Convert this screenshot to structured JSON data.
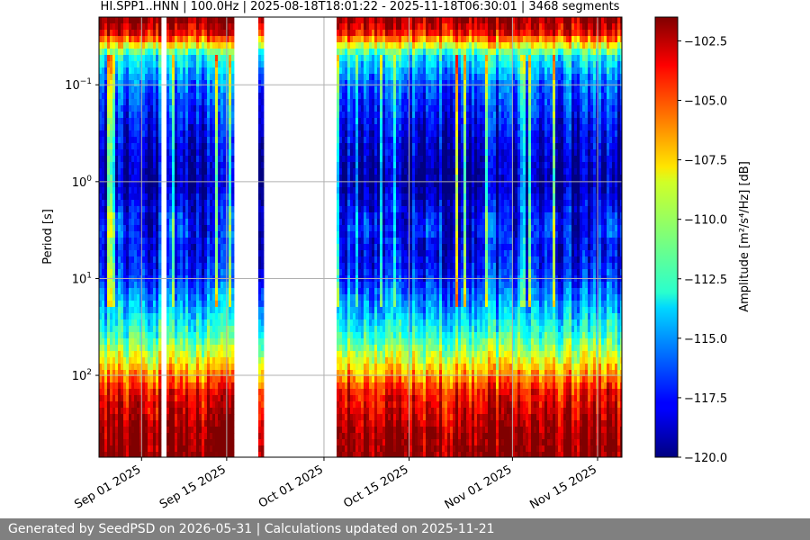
{
  "chart_data": {
    "type": "heatmap",
    "title": "HI.SPP1..HNN | 100.0Hz | 2025-08-18T18:01:22 - 2025-11-18T06:30:01 | 3468 segments",
    "ylabel": "Period [s]",
    "colorbar_label": "Amplitude [m²/s⁴/Hz] [dB]",
    "y_scale": "log",
    "y_inverted": true,
    "ylim": [
      0.02,
      700
    ],
    "xlim": [
      "2025-08-25",
      "2025-11-19"
    ],
    "grid": true,
    "y_ticks": [
      {
        "value": 0.1,
        "base": "10",
        "exp": "−1"
      },
      {
        "value": 1,
        "base": "10",
        "exp": "0"
      },
      {
        "value": 10,
        "base": "10",
        "exp": "1"
      },
      {
        "value": 100,
        "base": "10",
        "exp": "2"
      }
    ],
    "x_ticks": [
      {
        "date": "2025-09-01",
        "label": "Sep 01 2025"
      },
      {
        "date": "2025-09-15",
        "label": "Sep 15 2025"
      },
      {
        "date": "2025-10-01",
        "label": "Oct 01 2025"
      },
      {
        "date": "2025-10-15",
        "label": "Oct 15 2025"
      },
      {
        "date": "2025-11-01",
        "label": "Nov 01 2025"
      },
      {
        "date": "2025-11-15",
        "label": "Nov 15 2025"
      }
    ],
    "colorbar": {
      "range": [
        -120,
        -101.5
      ],
      "colormap": "jet",
      "ticks": [
        {
          "value": -102.5,
          "label": "−102.5"
        },
        {
          "value": -105.0,
          "label": "−105.0"
        },
        {
          "value": -107.5,
          "label": "−107.5"
        },
        {
          "value": -110.0,
          "label": "−110.0"
        },
        {
          "value": -112.5,
          "label": "−112.5"
        },
        {
          "value": -115.0,
          "label": "−115.0"
        },
        {
          "value": -117.5,
          "label": "−117.5"
        },
        {
          "value": -120.0,
          "label": "−120.0"
        }
      ]
    },
    "data_gaps": [
      {
        "start": "2025-09-04",
        "end": "2025-09-05"
      },
      {
        "start": "2025-09-16",
        "end": "2025-09-20"
      },
      {
        "start": "2025-09-21",
        "end": "2025-10-03"
      }
    ],
    "amplitude_profile": [
      {
        "period": 0.02,
        "db": -101.5
      },
      {
        "period": 0.03,
        "db": -104
      },
      {
        "period": 0.05,
        "db": -113
      },
      {
        "period": 0.1,
        "db": -116
      },
      {
        "period": 0.3,
        "db": -118
      },
      {
        "period": 1,
        "db": -119.5
      },
      {
        "period": 2,
        "db": -118
      },
      {
        "period": 3,
        "db": -117.5
      },
      {
        "period": 5,
        "db": -118
      },
      {
        "period": 10,
        "db": -117
      },
      {
        "period": 20,
        "db": -114.5
      },
      {
        "period": 40,
        "db": -112
      },
      {
        "period": 80,
        "db": -108
      },
      {
        "period": 150,
        "db": -104
      },
      {
        "period": 400,
        "db": -102
      },
      {
        "period": 700,
        "db": -101.5
      }
    ]
  },
  "footer": {
    "text": "Generated by SeedPSD on 2026-05-31 | Calculations updated on 2025-11-21"
  },
  "colors": {
    "footer_bg": "#808080",
    "footer_text": "#ffffff",
    "grid": "#b0b0b0"
  }
}
